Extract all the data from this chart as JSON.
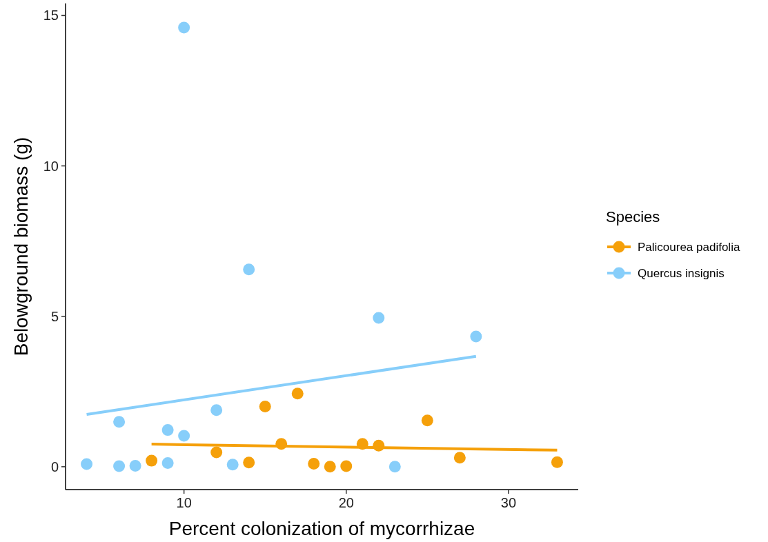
{
  "chart_data": {
    "type": "scatter",
    "xlabel": "Percent colonization of mycorrhizae",
    "ylabel": "Belowground biomass (g)",
    "legend_title": "Species",
    "legend": "right",
    "grid": false,
    "xlim": [
      2.7,
      34.3
    ],
    "ylim": [
      -0.76,
      15.4
    ],
    "xticks": [
      10,
      20,
      30
    ],
    "yticks": [
      0,
      5,
      10,
      15
    ],
    "series": [
      {
        "name": "Palicourea padifolia",
        "color": "#f5a00a",
        "marker": "circle",
        "x": [
          8,
          12,
          14,
          15,
          16,
          17,
          18,
          19,
          20,
          21,
          22,
          25,
          27,
          33
        ],
        "values": [
          0.2,
          0.48,
          0.14,
          2.0,
          0.76,
          2.43,
          0.1,
          0.0,
          0.02,
          0.76,
          0.7,
          1.54,
          0.3,
          0.15
        ]
      },
      {
        "name": "Quercus insignis",
        "color": "#87cefa",
        "marker": "circle",
        "x": [
          4,
          6,
          6,
          7,
          9,
          9,
          10,
          10,
          12,
          13,
          14,
          22,
          23,
          28
        ],
        "values": [
          0.09,
          1.49,
          0.02,
          0.03,
          1.22,
          0.12,
          1.03,
          14.6,
          1.88,
          0.07,
          6.56,
          4.95,
          0.0,
          4.33
        ]
      },
      {
        "color": "#f5a00a",
        "type": "line",
        "marker": "none",
        "x": [
          8,
          33
        ],
        "values": [
          0.75,
          0.55
        ]
      },
      {
        "color": "#87cefa",
        "type": "line",
        "marker": "none",
        "x": [
          4,
          28
        ],
        "values": [
          1.74,
          3.67
        ]
      }
    ]
  }
}
